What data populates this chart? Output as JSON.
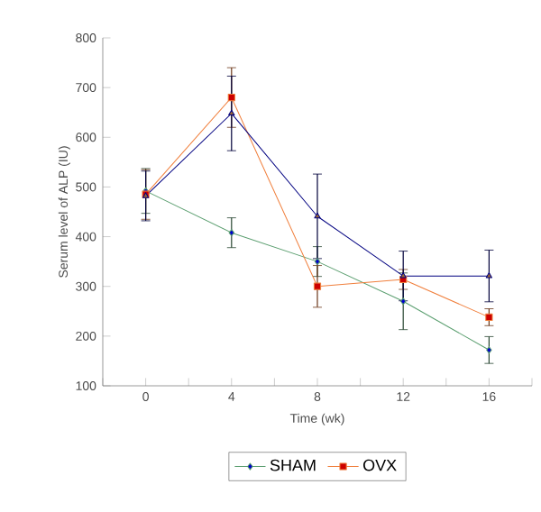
{
  "chart_data": {
    "type": "line",
    "xlabel": "Time (wk)",
    "ylabel": "Serum level of ALP (IU)",
    "x": [
      0,
      4,
      8,
      12,
      16
    ],
    "xlim": [
      -2,
      18
    ],
    "xticks": [
      {
        "value": -2,
        "label": null
      },
      0,
      {
        "value": 2,
        "label": null
      },
      4,
      {
        "value": 6,
        "label": null
      },
      8,
      {
        "value": 10,
        "label": null
      },
      12,
      {
        "value": 14,
        "label": null
      },
      16,
      {
        "value": 18,
        "label": null
      }
    ],
    "ylim": [
      100,
      800
    ],
    "yticks": [
      100,
      200,
      300,
      400,
      500,
      600,
      700,
      800
    ],
    "grid": false,
    "legend": "bottom",
    "series": [
      {
        "name": "SHAM",
        "color": "#5a9e6f",
        "marker": "diamond",
        "values": [
          492,
          408,
          350,
          270,
          172
        ],
        "errors": [
          45,
          30,
          30,
          57,
          27
        ]
      },
      {
        "name": "OVX",
        "color": "#f07f3c",
        "marker": "square",
        "values": [
          485,
          680,
          300,
          314,
          238
        ],
        "errors": [
          50,
          60,
          42,
          20,
          17
        ]
      },
      {
        "color": "#000080",
        "marker": "triangle",
        "values": [
          482,
          648,
          441,
          321,
          321
        ],
        "errors": [
          50,
          75,
          85,
          50,
          52
        ]
      }
    ]
  }
}
